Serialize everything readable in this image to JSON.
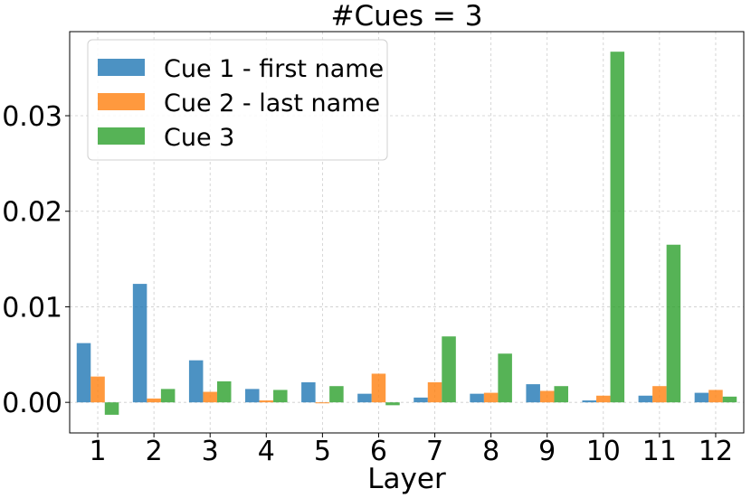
{
  "chart_data": {
    "type": "bar",
    "title": "#Cues = 3",
    "xlabel": "Layer",
    "ylabel": "",
    "categories": [
      "1",
      "2",
      "3",
      "4",
      "5",
      "6",
      "7",
      "8",
      "9",
      "10",
      "11",
      "12"
    ],
    "series": [
      {
        "name": "Cue 1 - first name",
        "color": "#1f77b4",
        "values": [
          0.0062,
          0.0124,
          0.0044,
          0.0014,
          0.0021,
          0.0009,
          0.0005,
          0.0009,
          0.0019,
          0.0002,
          0.0007,
          0.001
        ]
      },
      {
        "name": "Cue 2 - last name",
        "color": "#ff7f0e",
        "values": [
          0.0027,
          0.0004,
          0.0011,
          0.0002,
          -0.0001,
          0.003,
          0.0021,
          0.001,
          0.0012,
          0.0007,
          0.0017,
          0.0013
        ]
      },
      {
        "name": "Cue 3",
        "color": "#2ca02c",
        "values": [
          -0.0013,
          0.0014,
          0.0022,
          0.0013,
          0.0017,
          -0.0003,
          0.0069,
          0.0051,
          0.0017,
          0.0367,
          0.0165,
          0.0006
        ]
      }
    ],
    "yticks": [
      "0.00",
      "0.01",
      "0.02",
      "0.03"
    ],
    "ylim": [
      -0.0032,
      0.0388
    ],
    "grid": true,
    "legend_position": "top-left"
  }
}
